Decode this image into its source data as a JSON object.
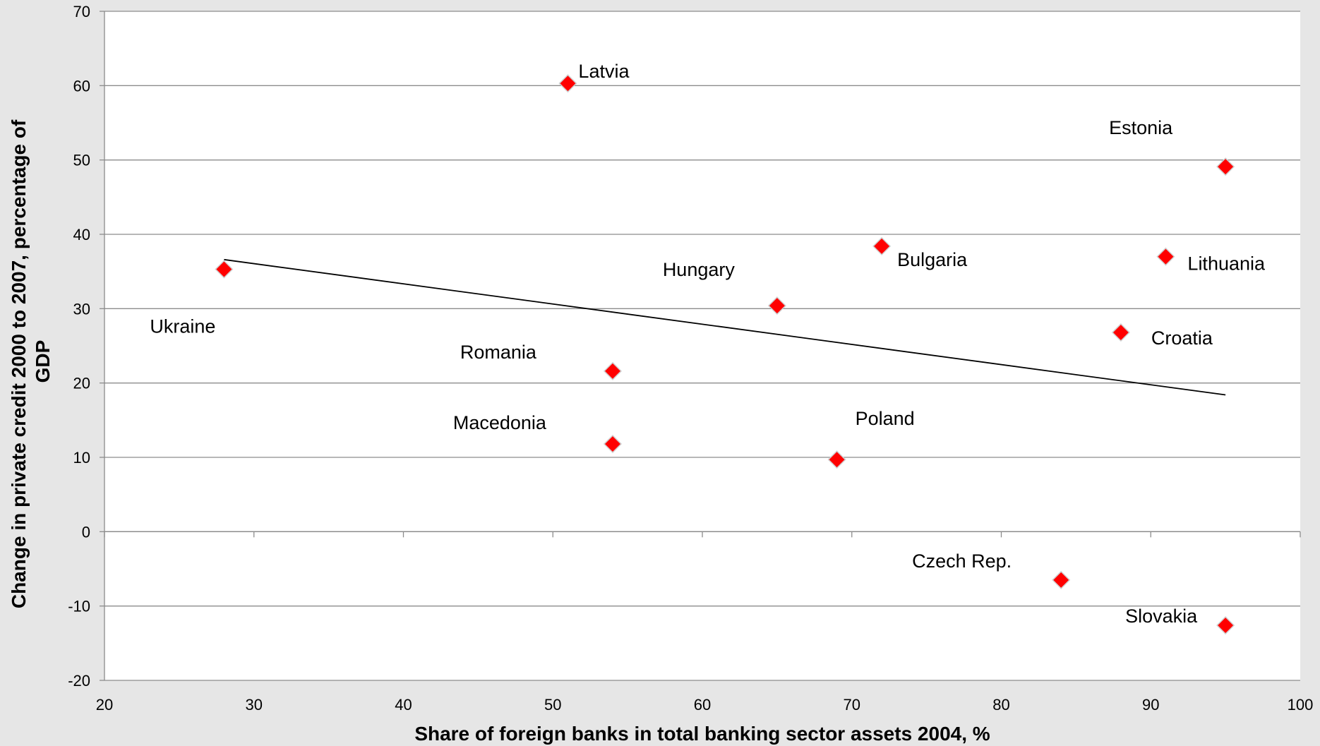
{
  "chart_data": {
    "type": "scatter",
    "title": "",
    "xlabel": "Share of foreign banks in total banking sector assets 2004, %",
    "ylabel_lines": [
      "Change in private credit 2000 to 2007, percentage of",
      "GDP"
    ],
    "xlim": [
      20,
      100
    ],
    "ylim": [
      -20,
      70
    ],
    "x_ticks": [
      20,
      30,
      40,
      50,
      60,
      70,
      80,
      90,
      100
    ],
    "y_ticks": [
      -20,
      -10,
      0,
      10,
      20,
      30,
      40,
      50,
      60,
      70
    ],
    "grid": "horizontal",
    "marker_color": "#ff0000",
    "points": [
      {
        "label": "Latvia",
        "x": 51,
        "y": 60.3
      },
      {
        "label": "Estonia",
        "x": 95,
        "y": 49.1
      },
      {
        "label": "Bulgaria",
        "x": 72,
        "y": 38.4
      },
      {
        "label": "Lithuania",
        "x": 91,
        "y": 37.0
      },
      {
        "label": "Ukraine",
        "x": 28,
        "y": 35.3
      },
      {
        "label": "Hungary",
        "x": 65,
        "y": 30.4
      },
      {
        "label": "Croatia",
        "x": 88,
        "y": 26.8
      },
      {
        "label": "Romania",
        "x": 54,
        "y": 21.6
      },
      {
        "label": "Macedonia",
        "x": 54,
        "y": 11.8
      },
      {
        "label": "Poland",
        "x": 69,
        "y": 9.7
      },
      {
        "label": "Czech Rep.",
        "x": 84,
        "y": -6.5
      },
      {
        "label": "Slovakia",
        "x": 95,
        "y": -12.6
      }
    ],
    "trendline": {
      "x": [
        28,
        95
      ],
      "y": [
        36.6,
        18.4
      ],
      "color": "#000000"
    }
  }
}
